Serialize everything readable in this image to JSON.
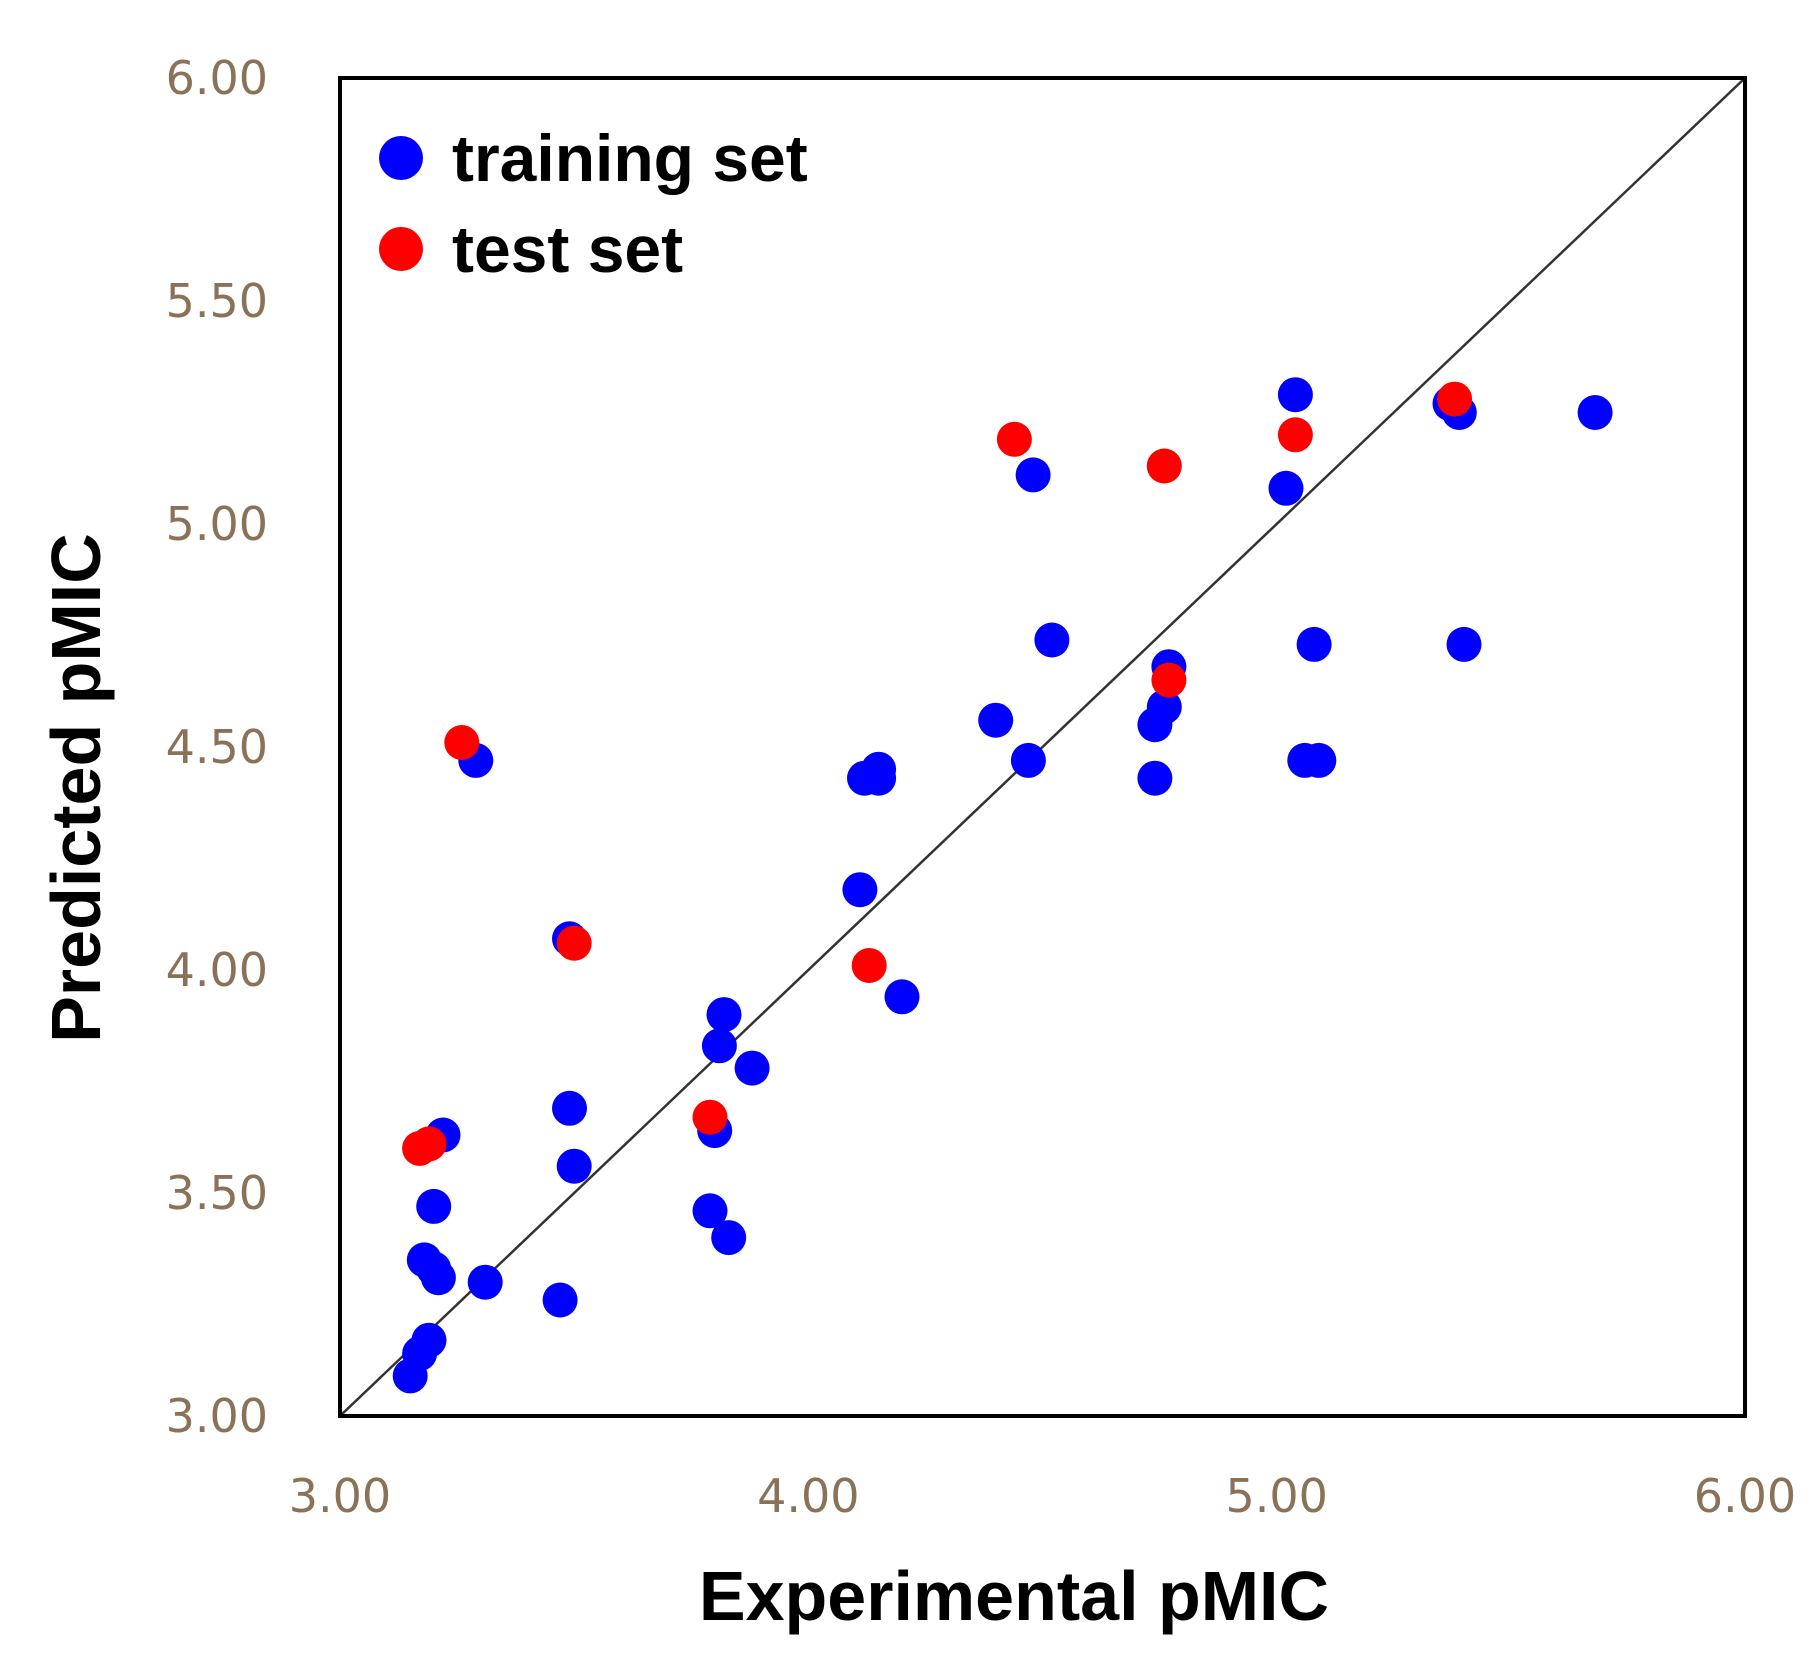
{
  "chart_data": {
    "type": "scatter",
    "xlabel": "Experimental pMIC",
    "ylabel": "Predicted pMIC",
    "xlim": [
      3.0,
      6.0
    ],
    "ylim": [
      3.0,
      6.0
    ],
    "x_ticks": [
      "3.00",
      "4.00",
      "5.00",
      "6.00"
    ],
    "y_ticks": [
      "3.00",
      "3.50",
      "4.00",
      "4.50",
      "5.00",
      "5.50",
      "6.00"
    ],
    "grid": false,
    "legend_position": "top-left",
    "reference_line": "y = x",
    "colors": {
      "training": "#0000ff",
      "test": "#ff0000",
      "tick": "#8a7259",
      "frame": "#000000",
      "diagonal": "#333333"
    },
    "series": [
      {
        "name": "training set",
        "color": "#0000ff",
        "points": [
          [
            3.15,
            3.09
          ],
          [
            3.17,
            3.14
          ],
          [
            3.19,
            3.17
          ],
          [
            3.18,
            3.35
          ],
          [
            3.2,
            3.33
          ],
          [
            3.21,
            3.31
          ],
          [
            3.2,
            3.47
          ],
          [
            3.22,
            3.63
          ],
          [
            3.29,
            4.47
          ],
          [
            3.31,
            3.3
          ],
          [
            3.47,
            3.26
          ],
          [
            3.49,
            4.07
          ],
          [
            3.49,
            3.69
          ],
          [
            3.5,
            3.56
          ],
          [
            3.79,
            3.46
          ],
          [
            3.8,
            3.64
          ],
          [
            3.81,
            3.83
          ],
          [
            3.82,
            3.9
          ],
          [
            3.83,
            3.4
          ],
          [
            3.88,
            3.78
          ],
          [
            4.11,
            4.18
          ],
          [
            4.12,
            4.43
          ],
          [
            4.15,
            4.43
          ],
          [
            4.15,
            4.45
          ],
          [
            4.2,
            3.94
          ],
          [
            4.4,
            4.56
          ],
          [
            4.47,
            4.47
          ],
          [
            4.48,
            5.11
          ],
          [
            4.52,
            4.74
          ],
          [
            4.74,
            4.43
          ],
          [
            4.74,
            4.55
          ],
          [
            4.76,
            4.59
          ],
          [
            4.77,
            4.68
          ],
          [
            5.02,
            5.08
          ],
          [
            5.04,
            5.29
          ],
          [
            5.06,
            4.47
          ],
          [
            5.09,
            4.47
          ],
          [
            5.08,
            4.73
          ],
          [
            5.37,
            5.27
          ],
          [
            5.39,
            5.25
          ],
          [
            5.4,
            4.73
          ],
          [
            5.68,
            5.25
          ]
        ]
      },
      {
        "name": "test set",
        "color": "#ff0000",
        "points": [
          [
            3.17,
            3.6
          ],
          [
            3.19,
            3.61
          ],
          [
            3.26,
            4.51
          ],
          [
            3.5,
            4.06
          ],
          [
            3.79,
            3.67
          ],
          [
            4.13,
            4.01
          ],
          [
            4.44,
            5.19
          ],
          [
            4.76,
            5.13
          ],
          [
            4.77,
            4.65
          ],
          [
            5.04,
            5.2
          ],
          [
            5.38,
            5.28
          ]
        ]
      }
    ]
  }
}
